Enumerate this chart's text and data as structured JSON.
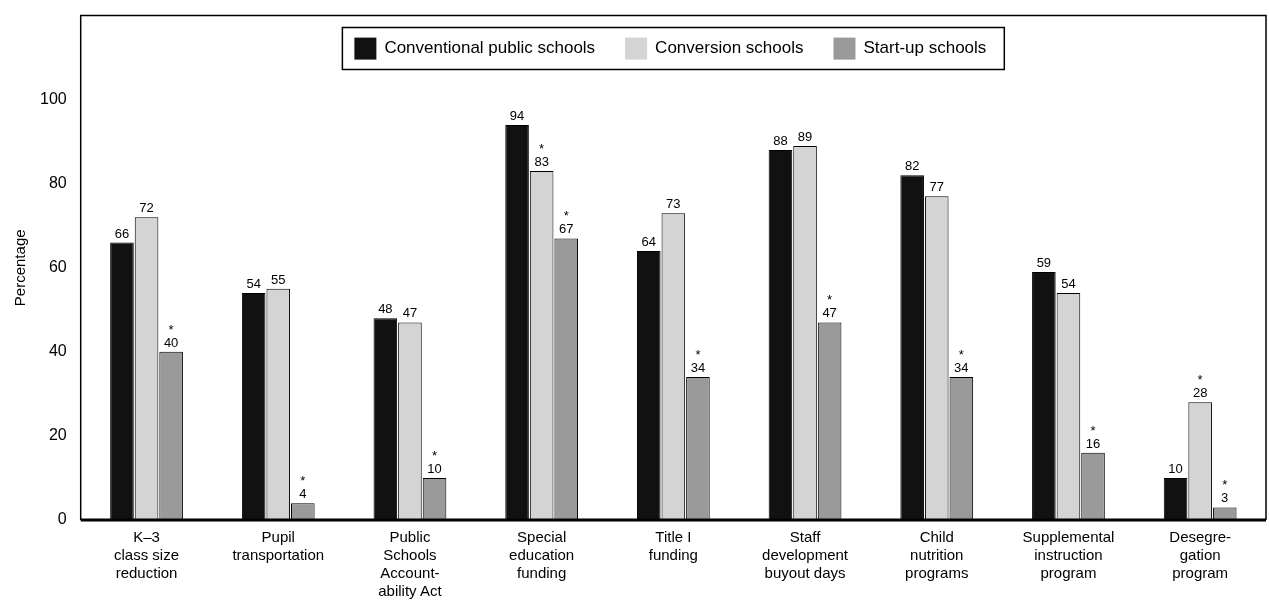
{
  "chart_data": {
    "type": "bar",
    "ylabel": "Percentage",
    "categories": [
      "K–3\nclass size\nreduction",
      "Pupil\ntransportation",
      "Public\nSchools\nAccount-\nability Act",
      "Special\neducation\nfunding",
      "Title I\nfunding",
      "Staff\ndevelopment\nbuyout days",
      "Child\nnutrition\nprograms",
      "Supplemental\ninstruction\nprogram",
      "Desegre-\ngation\nprogram"
    ],
    "series": [
      {
        "name": "Conventional public schools",
        "color": "#111111",
        "values": [
          66,
          54,
          48,
          94,
          64,
          88,
          82,
          59,
          10
        ],
        "value_labels": [
          "66",
          "54",
          "48",
          "94",
          "64",
          "88",
          "82",
          "59",
          "10"
        ]
      },
      {
        "name": "Conversion schools",
        "color": "#d4d4d4",
        "values": [
          72,
          55,
          47,
          83,
          73,
          89,
          77,
          54,
          28
        ],
        "value_labels": [
          "72",
          "55",
          "47",
          "*\n83",
          "73",
          "89",
          "77",
          "54",
          "*\n28"
        ]
      },
      {
        "name": "Start-up schools",
        "color": "#9a9a9a",
        "values": [
          40,
          4,
          10,
          67,
          34,
          47,
          34,
          16,
          3
        ],
        "value_labels": [
          "*\n40",
          "*\n4",
          "*\n10",
          "*\n67",
          "*\n34",
          "*\n47",
          "*\n34",
          "*\n16",
          "*\n3"
        ]
      }
    ],
    "ylim": [
      0,
      120
    ],
    "yticks": [
      0,
      20,
      40,
      60,
      80,
      100
    ],
    "grid": false,
    "legend": "top"
  }
}
